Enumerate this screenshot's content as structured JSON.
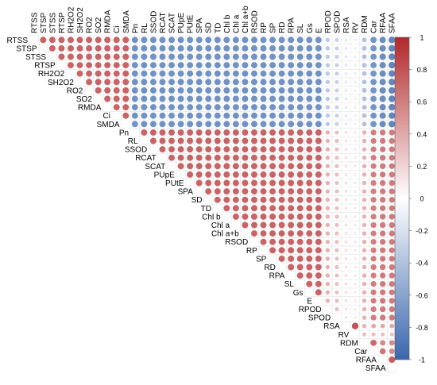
{
  "chart_data": {
    "type": "heatmap",
    "subtype": "correlation-upper-triangle-circles",
    "variables": [
      "RTSS",
      "STSP",
      "STSS",
      "RTSP",
      "RH2O2",
      "SH2O2",
      "RO2",
      "SO2",
      "RMDA",
      "Ci",
      "SMDA",
      "Pn",
      "RL",
      "SSOD",
      "RCAT",
      "SCAT",
      "PUpE",
      "PUtE",
      "SPA",
      "SD",
      "TD",
      "Chl b",
      "Chl a",
      "Chl a+b",
      "RSOD",
      "RP",
      "SP",
      "RD",
      "RPA",
      "SL",
      "Gs",
      "E",
      "RPOD",
      "SPOD",
      "RSA",
      "RV",
      "RDM",
      "Car",
      "RFAA",
      "SFAA"
    ],
    "group_a": [
      "RTSS",
      "STSP",
      "STSS",
      "RTSP",
      "RH2O2",
      "SH2O2",
      "RO2",
      "SO2",
      "RMDA",
      "Ci",
      "SMDA"
    ],
    "group_b": [
      "Pn",
      "RL",
      "SSOD",
      "RCAT",
      "SCAT",
      "PUpE",
      "PUtE",
      "SPA",
      "SD",
      "TD",
      "Chl b",
      "Chl a",
      "Chl a+b",
      "RSOD",
      "RP",
      "SP",
      "RD",
      "RPA",
      "SL",
      "Gs",
      "E",
      "RPOD",
      "SPOD"
    ],
    "group_c": [
      "RSA",
      "RV",
      "RDM",
      "Car",
      "RFAA",
      "SFAA"
    ],
    "within_ab": 0.72,
    "between_ab": -0.72,
    "c_pairs": {
      "RSA|RV": 0.8,
      "RSA|RDM": 0.35,
      "RSA|Car": 0.4,
      "RSA|RFAA": 0.4,
      "RSA|SFAA": 0.4,
      "RV|RDM": 0.3,
      "RV|Car": 0.3,
      "RV|RFAA": 0.3,
      "RV|SFAA": 0.3,
      "RDM|Car": 0.7,
      "RDM|RFAA": 0.55,
      "RDM|SFAA": 0.55,
      "Car|RFAA": 0.65,
      "Car|SFAA": 0.55,
      "RFAA|SFAA": 0.75
    },
    "c_vs_a": {
      "RSA": -0.15,
      "RV": -0.12,
      "RDM": -0.4,
      "Car": -0.7,
      "RFAA": -0.75,
      "SFAA": -0.8
    },
    "c_vs_b": {
      "RSA": 0.15,
      "RV": 0.12,
      "RDM": 0.35,
      "Car": 0.6,
      "RFAA": 0.62,
      "SFAA": 0.62
    },
    "b_self_adjust": {
      "RPOD": 0.35,
      "SPOD": 0.3
    },
    "colorbar": {
      "min": -1,
      "max": 1,
      "ticks": [
        1,
        0.8,
        0.6,
        0.4,
        0.2,
        0,
        -0.2,
        -0.4,
        -0.6,
        -0.8,
        -1
      ],
      "colors": {
        "low": "#3a67ad",
        "mid": "#ffffff",
        "high": "#b2282b"
      }
    },
    "title": "",
    "xlabel": "",
    "ylabel": ""
  }
}
